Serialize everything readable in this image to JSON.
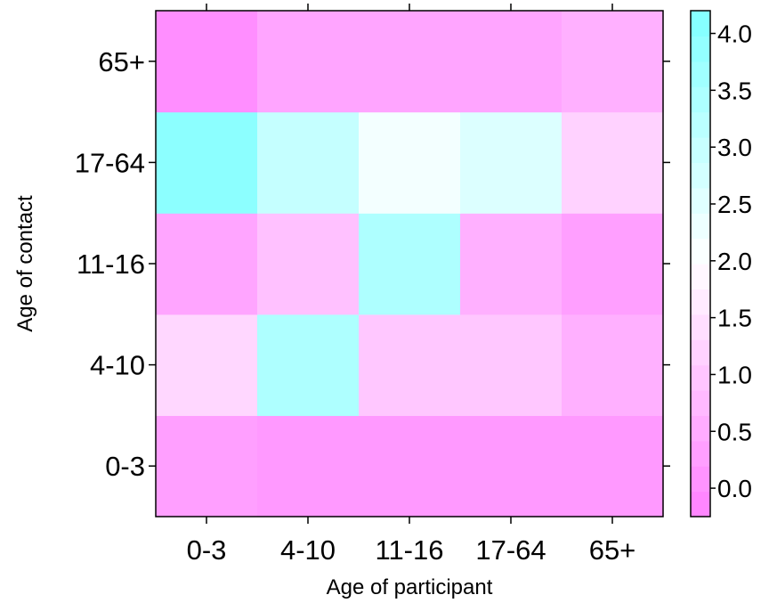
{
  "chart_data": {
    "type": "heatmap",
    "xlabel": "Age of participant",
    "ylabel": "Age of contact",
    "x_categories": [
      "0-3",
      "4-10",
      "11-16",
      "17-64",
      "65+"
    ],
    "y_categories": [
      "0-3",
      "4-10",
      "11-16",
      "17-64",
      "65+"
    ],
    "values": [
      [
        0.3,
        0.2,
        0.2,
        0.2,
        0.2
      ],
      [
        1.3,
        3.4,
        1.0,
        1.0,
        0.6
      ],
      [
        0.4,
        0.9,
        3.4,
        0.6,
        0.3
      ],
      [
        4.0,
        3.0,
        2.2,
        2.6,
        1.2
      ],
      [
        0.0,
        0.4,
        0.4,
        0.4,
        0.6
      ]
    ],
    "colorbar": {
      "min": -0.25,
      "max": 4.2,
      "ticks": [
        "0.0",
        "0.5",
        "1.0",
        "1.5",
        "2.0",
        "2.5",
        "3.0",
        "3.5",
        "4.0"
      ],
      "low_color": "#ff80ff",
      "mid_color": "#ffffff",
      "high_color": "#80ffff",
      "mid_value": 2.0
    }
  }
}
